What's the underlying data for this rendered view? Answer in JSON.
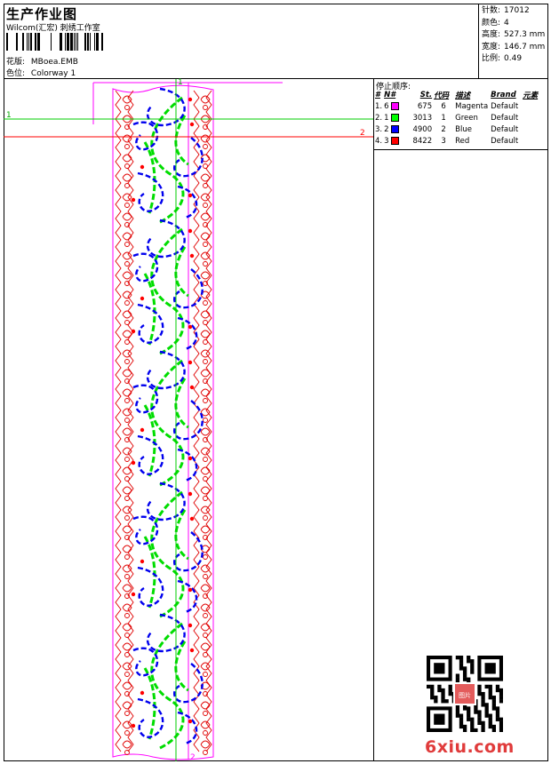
{
  "header": {
    "title": "生产作业图",
    "subtitle": "Wilcom(汇宏) 刺绣工作室",
    "design_label": "花版:",
    "design_file": "MBoea.EMB",
    "colorway_label": "色位:",
    "colorway": "Colorway 1"
  },
  "stats": {
    "stitches_label": "针数:",
    "stitches": "17012",
    "colors_label": "颜色:",
    "colors": "4",
    "height_label": "高度:",
    "height": "527.3 mm",
    "width_label": "宽度:",
    "width": "146.7 mm",
    "scale_label": "比例:",
    "scale": "0.49"
  },
  "stop_sequence": {
    "title": "停止顺序:",
    "headers": [
      "#",
      "N#",
      "St.",
      "代码",
      "描述",
      "Brand",
      "元素"
    ],
    "rows": [
      {
        "idx": "1.",
        "n": "6",
        "st": "675",
        "code": "6",
        "desc": "Magenta",
        "brand": "Default",
        "color": "#ff00ff"
      },
      {
        "idx": "2.",
        "n": "1",
        "st": "3013",
        "code": "1",
        "desc": "Green",
        "brand": "Default",
        "color": "#00ff00"
      },
      {
        "idx": "3.",
        "n": "2",
        "st": "4900",
        "code": "2",
        "desc": "Blue",
        "brand": "Default",
        "color": "#0000ff"
      },
      {
        "idx": "4.",
        "n": "3",
        "st": "8422",
        "code": "3",
        "desc": "Red",
        "brand": "Default",
        "color": "#ff0000"
      }
    ]
  },
  "guides": {
    "guide_1": "1",
    "guide_2": "2"
  },
  "watermark": {
    "text": "6xiu.com",
    "seal": "图片"
  },
  "colors": {
    "magenta": "#ff00ff",
    "green": "#00ff00",
    "blue": "#0000ff",
    "red": "#ff0000",
    "guide_green": "#00cc00"
  }
}
